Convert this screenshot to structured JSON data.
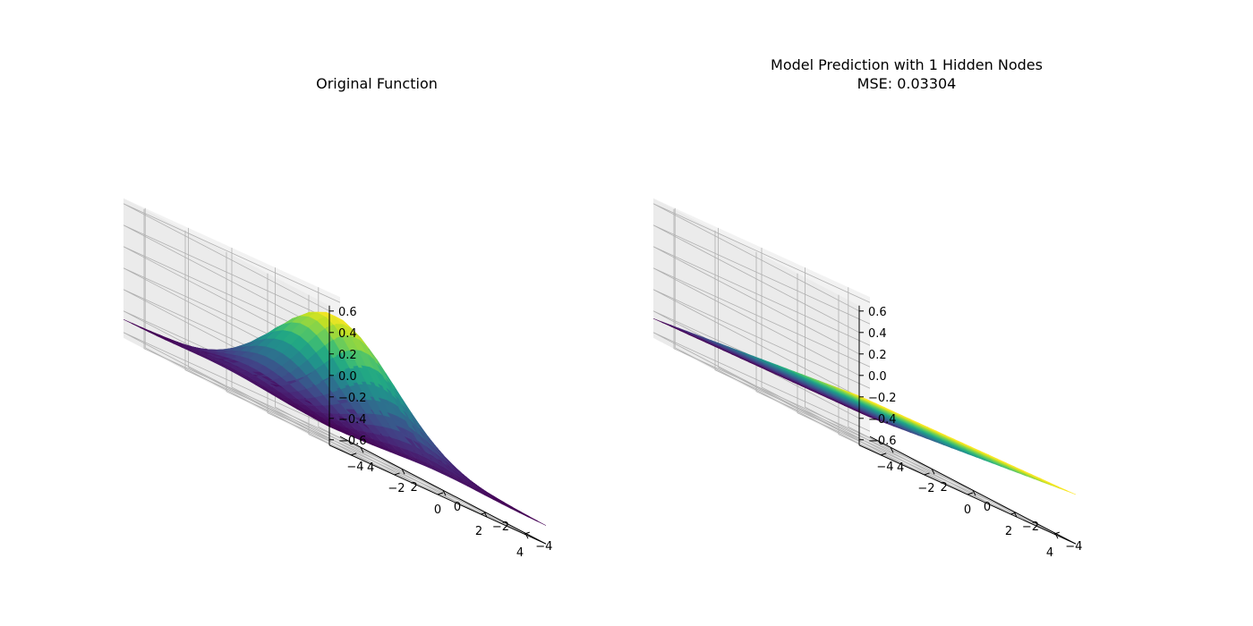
{
  "chart_data": [
    {
      "type": "surface",
      "title": "Original Function",
      "xlabel": "",
      "ylabel": "",
      "zlabel": "",
      "xlim": [
        -5,
        5
      ],
      "ylim": [
        -5,
        5
      ],
      "zlim": [
        -0.65,
        0.65
      ],
      "x_ticks": [
        -4,
        -2,
        0,
        2,
        4
      ],
      "y_ticks": [
        -4,
        -2,
        0,
        2,
        4
      ],
      "z_ticks": [
        -0.6,
        -0.4,
        -0.2,
        0.0,
        0.2,
        0.4,
        0.6
      ],
      "x_tick_labels": [
        "−4",
        "−2",
        "0",
        "2",
        "4"
      ],
      "y_tick_labels": [
        "−4",
        "−2",
        "0",
        "2",
        "4"
      ],
      "z_tick_labels": [
        "−0.6",
        "−0.4",
        "−0.2",
        "0.0",
        "0.2",
        "0.4",
        "0.6"
      ],
      "colormap": "viridis",
      "grid": true,
      "surface": {
        "function": "gaussian",
        "peak_value": 0.52,
        "base_value": -0.48,
        "peak_center": [
          0,
          0
        ],
        "spread": 2.0
      }
    },
    {
      "type": "surface",
      "title": "Model Prediction with 1 Hidden Nodes",
      "subtitle": "MSE: 0.03304",
      "xlabel": "",
      "ylabel": "",
      "zlabel": "",
      "xlim": [
        -5,
        5
      ],
      "ylim": [
        -5,
        5
      ],
      "zlim": [
        -0.65,
        0.65
      ],
      "x_ticks": [
        -4,
        -2,
        0,
        2,
        4
      ],
      "y_ticks": [
        -4,
        -2,
        0,
        2,
        4
      ],
      "z_ticks": [
        -0.6,
        -0.4,
        -0.2,
        0.0,
        0.2,
        0.4,
        0.6
      ],
      "x_tick_labels": [
        "−4",
        "−2",
        "0",
        "2",
        "4"
      ],
      "y_tick_labels": [
        "−4",
        "−2",
        "0",
        "2",
        "4"
      ],
      "z_tick_labels": [
        "−0.6",
        "−0.4",
        "−0.2",
        "0.0",
        "0.2",
        "0.4",
        "0.6"
      ],
      "colormap": "viridis",
      "grid": true,
      "surface": {
        "function": "linear_ramp",
        "value_at_x_min": -0.47,
        "value_at_x_max": -0.19
      }
    }
  ]
}
